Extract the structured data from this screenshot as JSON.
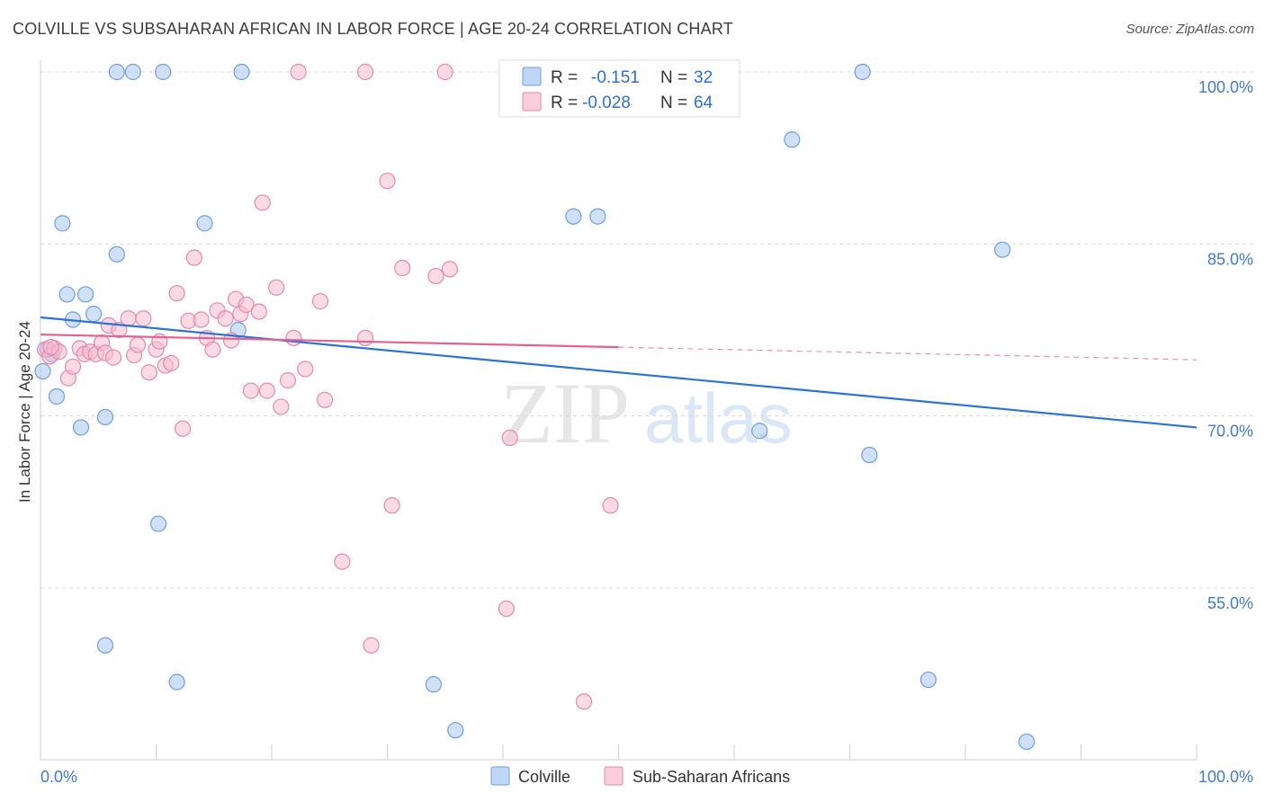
{
  "header": {
    "title": "COLVILLE VS SUBSAHARAN AFRICAN IN LABOR FORCE | AGE 20-24 CORRELATION CHART",
    "source": "Source: ZipAtlas.com"
  },
  "watermark": {
    "zip": "ZIP",
    "atlas": "atlas"
  },
  "legend": {
    "r_label": "R =",
    "n_label": "N =",
    "colville": {
      "r": "-0.151",
      "n": "32"
    },
    "subsaharan": {
      "r": "-0.028",
      "n": "64"
    }
  },
  "colors": {
    "colville_fill": "#aac8f0",
    "colville_stroke": "#6f9fe0",
    "colville_line": "#2f72d2",
    "subsaharan_fill": "#f6bcd0",
    "subsaharan_stroke": "#e58aaa",
    "subsaharan_line": "#e3628f",
    "tick_label": "#3f7ad6",
    "grid": "#d8d8d8"
  },
  "chart_data": {
    "type": "scatter",
    "title": "COLVILLE VS SUBSAHARAN AFRICAN IN LABOR FORCE | AGE 20-24 CORRELATION CHART",
    "xlabel": "",
    "ylabel": "In Labor Force | Age 20-24",
    "xlim": [
      0,
      100
    ],
    "ylim": [
      40,
      101.5
    ],
    "x_tick_labels": [
      "0.0%",
      "100.0%"
    ],
    "y_ticks": [
      55,
      70,
      85,
      100
    ],
    "y_tick_labels": [
      "55.0%",
      "70.0%",
      "85.0%",
      "100.0%"
    ],
    "grid": true,
    "legend_position": "bottom",
    "series": [
      {
        "name": "Colville",
        "r": -0.151,
        "n": 32,
        "trend": {
          "x": [
            0,
            100
          ],
          "y": [
            78.6,
            69.0
          ],
          "dashed_from": null
        },
        "points": [
          {
            "x": 0.2,
            "y": 73.9
          },
          {
            "x": 1.0,
            "y": 75.4
          },
          {
            "x": 1.4,
            "y": 71.7
          },
          {
            "x": 1.9,
            "y": 86.8
          },
          {
            "x": 2.3,
            "y": 80.6
          },
          {
            "x": 2.8,
            "y": 78.4
          },
          {
            "x": 3.5,
            "y": 69.0
          },
          {
            "x": 3.9,
            "y": 80.6
          },
          {
            "x": 4.6,
            "y": 78.9
          },
          {
            "x": 5.6,
            "y": 69.9
          },
          {
            "x": 5.6,
            "y": 50.0
          },
          {
            "x": 6.6,
            "y": 84.1
          },
          {
            "x": 6.6,
            "y": 100.0
          },
          {
            "x": 8.0,
            "y": 100.0
          },
          {
            "x": 10.2,
            "y": 60.6
          },
          {
            "x": 10.6,
            "y": 100.0
          },
          {
            "x": 11.8,
            "y": 46.8
          },
          {
            "x": 14.2,
            "y": 86.8
          },
          {
            "x": 17.1,
            "y": 77.5
          },
          {
            "x": 17.4,
            "y": 100.0
          },
          {
            "x": 34.0,
            "y": 46.6
          },
          {
            "x": 35.9,
            "y": 42.6
          },
          {
            "x": 46.1,
            "y": 87.4
          },
          {
            "x": 48.2,
            "y": 87.4
          },
          {
            "x": 62.2,
            "y": 68.7
          },
          {
            "x": 65.0,
            "y": 94.1
          },
          {
            "x": 71.1,
            "y": 100.0
          },
          {
            "x": 71.7,
            "y": 66.6
          },
          {
            "x": 76.8,
            "y": 47.0
          },
          {
            "x": 83.2,
            "y": 84.5
          },
          {
            "x": 85.3,
            "y": 41.6
          },
          {
            "x": 0.6,
            "y": 75.8
          }
        ]
      },
      {
        "name": "Sub-Saharan Africans",
        "r": -0.028,
        "n": 64,
        "trend": {
          "x": [
            0,
            100
          ],
          "y": [
            77.1,
            74.9
          ],
          "dashed_from": 50
        },
        "points": [
          {
            "x": 0.4,
            "y": 75.8
          },
          {
            "x": 0.8,
            "y": 75.2
          },
          {
            "x": 1.2,
            "y": 75.9
          },
          {
            "x": 1.6,
            "y": 75.6
          },
          {
            "x": 2.4,
            "y": 73.3
          },
          {
            "x": 2.8,
            "y": 74.3
          },
          {
            "x": 3.4,
            "y": 75.9
          },
          {
            "x": 3.8,
            "y": 75.4
          },
          {
            "x": 4.3,
            "y": 75.6
          },
          {
            "x": 4.8,
            "y": 75.4
          },
          {
            "x": 5.3,
            "y": 76.4
          },
          {
            "x": 5.6,
            "y": 75.5
          },
          {
            "x": 5.9,
            "y": 77.9
          },
          {
            "x": 6.3,
            "y": 75.1
          },
          {
            "x": 6.8,
            "y": 77.5
          },
          {
            "x": 7.6,
            "y": 78.5
          },
          {
            "x": 8.1,
            "y": 75.3
          },
          {
            "x": 8.4,
            "y": 76.2
          },
          {
            "x": 8.9,
            "y": 78.5
          },
          {
            "x": 9.4,
            "y": 73.8
          },
          {
            "x": 10.0,
            "y": 75.8
          },
          {
            "x": 10.3,
            "y": 76.5
          },
          {
            "x": 10.8,
            "y": 74.4
          },
          {
            "x": 11.3,
            "y": 74.6
          },
          {
            "x": 11.8,
            "y": 80.7
          },
          {
            "x": 12.3,
            "y": 68.9
          },
          {
            "x": 12.8,
            "y": 78.3
          },
          {
            "x": 13.3,
            "y": 83.8
          },
          {
            "x": 13.9,
            "y": 78.4
          },
          {
            "x": 14.4,
            "y": 76.8
          },
          {
            "x": 14.9,
            "y": 75.8
          },
          {
            "x": 15.3,
            "y": 79.2
          },
          {
            "x": 16.0,
            "y": 78.5
          },
          {
            "x": 16.5,
            "y": 76.6
          },
          {
            "x": 16.9,
            "y": 80.2
          },
          {
            "x": 17.3,
            "y": 78.9
          },
          {
            "x": 17.8,
            "y": 79.7
          },
          {
            "x": 18.2,
            "y": 72.2
          },
          {
            "x": 18.9,
            "y": 79.1
          },
          {
            "x": 19.2,
            "y": 88.6
          },
          {
            "x": 19.6,
            "y": 72.2
          },
          {
            "x": 20.4,
            "y": 81.2
          },
          {
            "x": 20.8,
            "y": 70.8
          },
          {
            "x": 21.4,
            "y": 73.1
          },
          {
            "x": 21.9,
            "y": 76.8
          },
          {
            "x": 22.3,
            "y": 100.0
          },
          {
            "x": 22.9,
            "y": 74.1
          },
          {
            "x": 24.2,
            "y": 80.0
          },
          {
            "x": 24.6,
            "y": 71.4
          },
          {
            "x": 26.1,
            "y": 57.3
          },
          {
            "x": 28.1,
            "y": 76.8
          },
          {
            "x": 28.1,
            "y": 100.0
          },
          {
            "x": 28.6,
            "y": 50.0
          },
          {
            "x": 30.0,
            "y": 90.5
          },
          {
            "x": 30.4,
            "y": 62.2
          },
          {
            "x": 31.3,
            "y": 82.9
          },
          {
            "x": 34.2,
            "y": 82.2
          },
          {
            "x": 35.0,
            "y": 100.0
          },
          {
            "x": 35.4,
            "y": 82.8
          },
          {
            "x": 40.3,
            "y": 53.2
          },
          {
            "x": 40.6,
            "y": 68.1
          },
          {
            "x": 47.0,
            "y": 45.1
          },
          {
            "x": 49.3,
            "y": 62.2
          },
          {
            "x": 0.9,
            "y": 76.0
          }
        ]
      }
    ]
  }
}
